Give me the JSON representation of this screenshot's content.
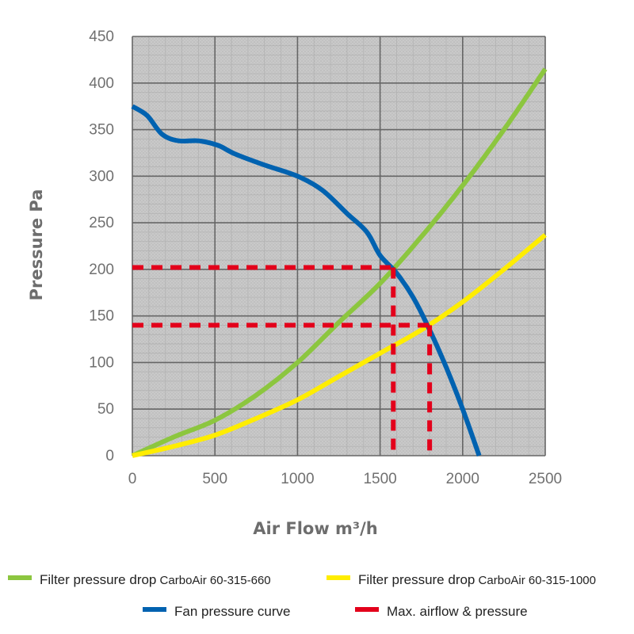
{
  "chart_data": {
    "type": "line",
    "xlabel": "Air Flow m³/h",
    "ylabel": "Pressure Pa",
    "xlim": [
      0,
      2500
    ],
    "ylim": [
      0,
      450
    ],
    "x_ticks": [
      0,
      500,
      1000,
      1500,
      2000,
      2500
    ],
    "y_ticks": [
      0,
      50,
      100,
      150,
      200,
      250,
      300,
      350,
      400,
      450
    ],
    "grid": true,
    "legend_position": "bottom",
    "series": [
      {
        "name": "Filter pressure drop",
        "model": "CarboAir 60-315-660",
        "color": "#8cc63f",
        "points": [
          [
            0,
            0
          ],
          [
            250,
            20
          ],
          [
            500,
            38
          ],
          [
            750,
            65
          ],
          [
            1000,
            100
          ],
          [
            1250,
            143
          ],
          [
            1500,
            185
          ],
          [
            1750,
            235
          ],
          [
            2000,
            290
          ],
          [
            2250,
            350
          ],
          [
            2500,
            415
          ]
        ]
      },
      {
        "name": "Filter pressure drop",
        "model": "CarboAir 60-315-1000",
        "color": "#ffed00",
        "points": [
          [
            0,
            0
          ],
          [
            250,
            10
          ],
          [
            500,
            22
          ],
          [
            750,
            40
          ],
          [
            1000,
            60
          ],
          [
            1250,
            85
          ],
          [
            1500,
            110
          ],
          [
            1750,
            135
          ],
          [
            2000,
            165
          ],
          [
            2250,
            200
          ],
          [
            2500,
            237
          ]
        ]
      },
      {
        "name": "Fan pressure curve",
        "color": "#0062b0",
        "points": [
          [
            0,
            375
          ],
          [
            90,
            365
          ],
          [
            180,
            345
          ],
          [
            280,
            338
          ],
          [
            400,
            338
          ],
          [
            520,
            333
          ],
          [
            620,
            324
          ],
          [
            800,
            312
          ],
          [
            1000,
            300
          ],
          [
            1150,
            285
          ],
          [
            1300,
            260
          ],
          [
            1420,
            240
          ],
          [
            1500,
            215
          ],
          [
            1600,
            196
          ],
          [
            1700,
            170
          ],
          [
            1800,
            135
          ],
          [
            1900,
            95
          ],
          [
            2000,
            50
          ],
          [
            2100,
            0
          ]
        ]
      },
      {
        "name": "Max. airflow & pressure",
        "color": "#e3001b",
        "style": "dashed",
        "markers": [
          {
            "x": 1580,
            "y": 202
          },
          {
            "x": 1800,
            "y": 140
          }
        ]
      }
    ]
  }
}
